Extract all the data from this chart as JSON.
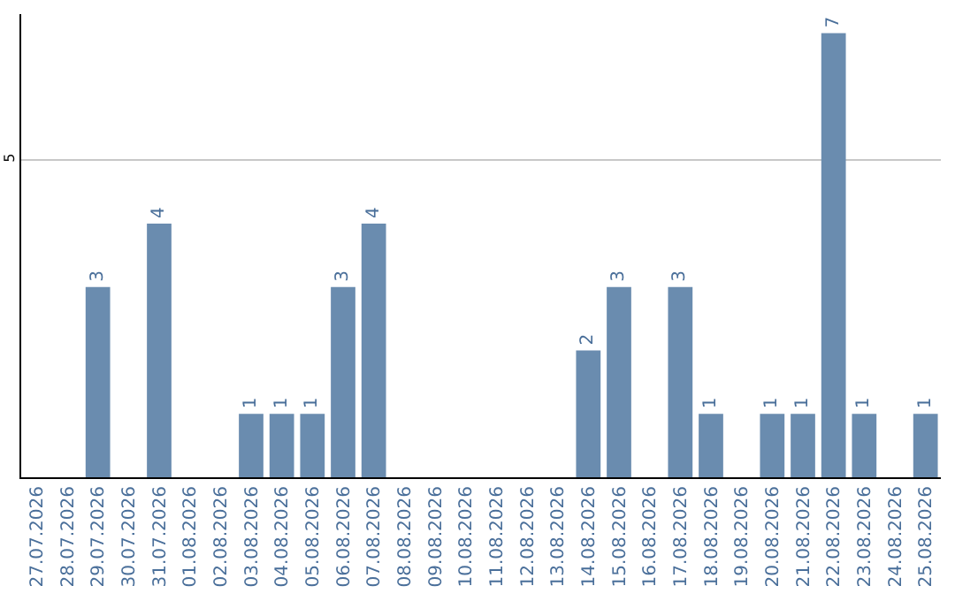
{
  "chart_data": {
    "type": "bar",
    "categories": [
      "27.07.2026",
      "28.07.2026",
      "29.07.2026",
      "30.07.2026",
      "31.07.2026",
      "01.08.2026",
      "02.08.2026",
      "03.08.2026",
      "04.08.2026",
      "05.08.2026",
      "06.08.2026",
      "07.08.2026",
      "08.08.2026",
      "09.08.2026",
      "10.08.2026",
      "11.08.2026",
      "12.08.2026",
      "13.08.2026",
      "14.08.2026",
      "15.08.2026",
      "16.08.2026",
      "17.08.2026",
      "18.08.2026",
      "19.08.2026",
      "20.08.2026",
      "21.08.2026",
      "22.08.2026",
      "23.08.2026",
      "24.08.2026",
      "25.08.2026"
    ],
    "values": [
      0,
      0,
      3,
      0,
      4,
      0,
      0,
      1,
      1,
      1,
      3,
      4,
      0,
      0,
      0,
      0,
      0,
      0,
      2,
      3,
      0,
      3,
      1,
      0,
      1,
      1,
      7,
      1,
      0,
      1
    ],
    "value_labels": [
      null,
      null,
      "3",
      null,
      "4",
      null,
      null,
      "1",
      "1",
      "1",
      "3",
      "4",
      null,
      null,
      null,
      null,
      null,
      null,
      "2",
      "3",
      null,
      "3",
      "1",
      null,
      "1",
      "1",
      "7",
      "1",
      null,
      "1"
    ],
    "color": "#6a8caf",
    "ylim": [
      0,
      7.3
    ],
    "yticks": [
      5
    ],
    "grid": "y",
    "legend": false
  }
}
